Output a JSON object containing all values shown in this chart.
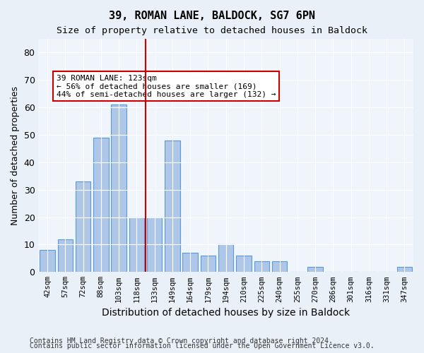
{
  "title1": "39, ROMAN LANE, BALDOCK, SG7 6PN",
  "title2": "Size of property relative to detached houses in Baldock",
  "xlabel": "Distribution of detached houses by size in Baldock",
  "ylabel": "Number of detached properties",
  "categories": [
    "42sqm",
    "57sqm",
    "72sqm",
    "88sqm",
    "103sqm",
    "118sqm",
    "133sqm",
    "149sqm",
    "164sqm",
    "179sqm",
    "194sqm",
    "210sqm",
    "225sqm",
    "240sqm",
    "255sqm",
    "270sqm",
    "286sqm",
    "301sqm",
    "316sqm",
    "331sqm",
    "347sqm"
  ],
  "values": [
    8,
    12,
    33,
    49,
    61,
    20,
    20,
    48,
    7,
    6,
    10,
    6,
    4,
    4,
    0,
    2,
    0,
    0,
    0,
    0,
    2
  ],
  "bar_color": "#aec6e8",
  "bar_edge_color": "#5b9bd5",
  "vline_x": 5.5,
  "vline_color": "#cc0000",
  "annotation_text": "39 ROMAN LANE: 123sqm\n← 56% of detached houses are smaller (169)\n44% of semi-detached houses are larger (132) →",
  "annotation_box_color": "#ffffff",
  "annotation_box_edge": "#cc0000",
  "ylim": [
    0,
    85
  ],
  "yticks": [
    0,
    10,
    20,
    30,
    40,
    50,
    60,
    70,
    80
  ],
  "footer1": "Contains HM Land Registry data © Crown copyright and database right 2024.",
  "footer2": "Contains public sector information licensed under the Open Government Licence v3.0.",
  "bg_color": "#eaf0f8",
  "plot_bg_color": "#f0f4fb"
}
